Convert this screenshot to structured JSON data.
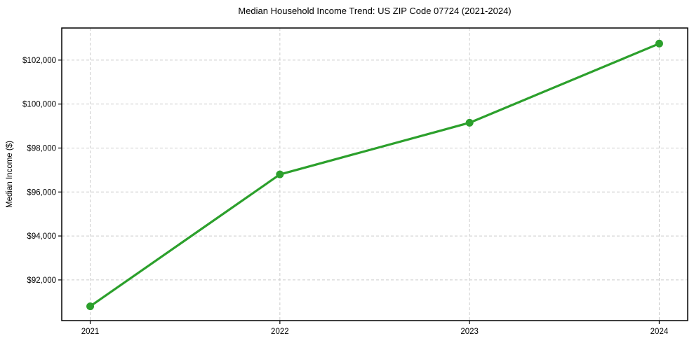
{
  "chart_data": {
    "type": "line",
    "title": "Median Household Income Trend: US ZIP Code 07724 (2021-2024)",
    "xlabel": "",
    "ylabel": "Median Income ($)",
    "x": [
      2021,
      2022,
      2023,
      2024
    ],
    "series": [
      {
        "name": "Median Household Income",
        "values": [
          90800,
          96800,
          99150,
          102750
        ],
        "color": "#2ca02c",
        "marker": "circle"
      }
    ],
    "xtick_values": [
      2021,
      2022,
      2023,
      2024
    ],
    "xtick_labels": [
      "2021",
      "2022",
      "2023",
      "2024"
    ],
    "ytick_values": [
      92000,
      94000,
      96000,
      98000,
      100000,
      102000
    ],
    "ytick_labels": [
      "$92,000",
      "$94,000",
      "$96,000",
      "$98,000",
      "$100,000",
      "$102,000"
    ],
    "xlim": [
      2020.85,
      2024.15
    ],
    "ylim": [
      90150,
      103460
    ],
    "grid": true,
    "grid_style": "dashed",
    "grid_color": "#cccccc",
    "spine_color": "#000000",
    "background_color": "#ffffff",
    "legend": "none"
  }
}
